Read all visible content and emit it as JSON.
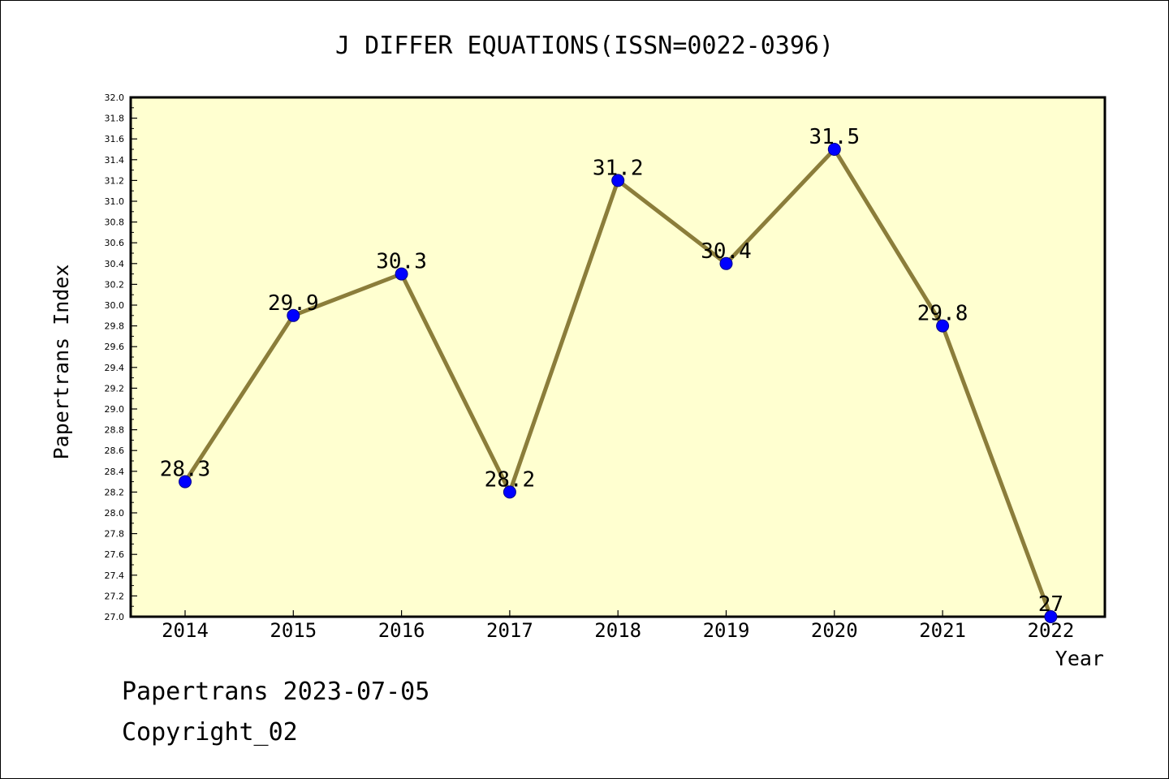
{
  "chart_data": {
    "type": "line",
    "title": "J DIFFER EQUATIONS(ISSN=0022-0396)",
    "xlabel": "Year",
    "ylabel": "Papertrans Index",
    "categories": [
      "2014",
      "2015",
      "2016",
      "2017",
      "2018",
      "2019",
      "2020",
      "2021",
      "2022"
    ],
    "values": [
      28.3,
      29.9,
      30.3,
      28.2,
      31.2,
      30.4,
      31.5,
      29.8,
      27.0
    ],
    "data_labels": [
      "28.3",
      "29.9",
      "30.3",
      "28.2",
      "31.2",
      "30.4",
      "31.5",
      "29.8",
      "27"
    ],
    "ylim": [
      27.0,
      32.0
    ],
    "ytick_labels": [
      "27.0",
      "27.2",
      "27.4",
      "27.6",
      "27.8",
      "28.0",
      "28.2",
      "28.4",
      "28.6",
      "28.8",
      "29.0",
      "29.2",
      "29.4",
      "29.6",
      "29.8",
      "30.0",
      "30.2",
      "30.4",
      "30.6",
      "30.8",
      "31.0",
      "31.2",
      "31.4",
      "31.6",
      "31.8",
      "32.0"
    ],
    "grid": false,
    "colors": {
      "plot_background": "#ffffd0",
      "line": "#8b7d3a",
      "marker": "#0000ff"
    }
  },
  "footer": {
    "line1": "Papertrans 2023-07-05",
    "line2": "Copyright_02"
  }
}
